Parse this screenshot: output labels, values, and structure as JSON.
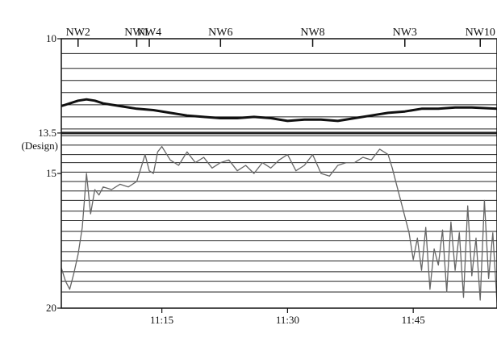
{
  "chart_data": {
    "type": "line",
    "title": "",
    "xlabel": "",
    "ylabel": "",
    "yaxis": {
      "inverted": true,
      "ylim": [
        10,
        20
      ],
      "ticks": [
        {
          "value": 10,
          "label": "10"
        },
        {
          "value": 13.5,
          "label": "13.5"
        },
        {
          "value": 15,
          "label": "15"
        },
        {
          "value": 20,
          "label": "20"
        }
      ],
      "design_label": "(Design)",
      "design_value": 13.5,
      "grid_lines": [
        10.55,
        11.1,
        11.55,
        12.0,
        12.45,
        12.9,
        13.35,
        13.5,
        13.6,
        13.95,
        14.3,
        14.6,
        14.95,
        15.3,
        15.65,
        16.0,
        16.4,
        16.75,
        17.15,
        17.5,
        17.9,
        18.25,
        18.65,
        19.0,
        19.4
      ]
    },
    "xaxis": {
      "xlim": [
        "11:03",
        "11:55"
      ],
      "ticks": [
        {
          "value": "11:15",
          "label": "11:15"
        },
        {
          "value": "11:30",
          "label": "11:30"
        },
        {
          "value": "11:45",
          "label": "11:45"
        }
      ]
    },
    "stations": [
      {
        "label": "NW2",
        "time": "11:05"
      },
      {
        "label": "NW1",
        "time": "11:12"
      },
      {
        "label": "NW4",
        "time": "11:13.5"
      },
      {
        "label": "NW6",
        "time": "11:22"
      },
      {
        "label": "NW8",
        "time": "11:33"
      },
      {
        "label": "NW3",
        "time": "11:44"
      },
      {
        "label": "NW10",
        "time": "11:53"
      }
    ],
    "series": [
      {
        "color": "#111111",
        "x": [
          "11:03",
          "11:04",
          "11:05",
          "11:06",
          "11:07",
          "11:08",
          "11:10",
          "11:12",
          "11:14",
          "11:16",
          "11:18",
          "11:20",
          "11:22",
          "11:24",
          "11:26",
          "11:28",
          "11:30",
          "11:32",
          "11:34",
          "11:36",
          "11:38",
          "11:40",
          "11:42",
          "11:44",
          "11:46",
          "11:48",
          "11:50",
          "11:52",
          "11:55"
        ],
        "values": [
          12.5,
          12.4,
          12.3,
          12.25,
          12.3,
          12.4,
          12.5,
          12.6,
          12.65,
          12.75,
          12.85,
          12.9,
          12.95,
          12.95,
          12.9,
          12.95,
          13.05,
          13.0,
          13.0,
          13.05,
          12.95,
          12.85,
          12.75,
          12.7,
          12.6,
          12.6,
          12.55,
          12.55,
          12.6
        ]
      },
      {
        "color": "#666666",
        "x": [
          "11:03",
          "11:03.5",
          "11:04",
          "11:04.5",
          "11:05",
          "11:05.5",
          "11:06",
          "11:06.5",
          "11:07",
          "11:07.5",
          "11:08",
          "11:09",
          "11:10",
          "11:11",
          "11:12",
          "11:12.5",
          "11:13",
          "11:13.5",
          "11:14",
          "11:14.5",
          "11:15",
          "11:16",
          "11:17",
          "11:18",
          "11:19",
          "11:20",
          "11:21",
          "11:22",
          "11:23",
          "11:24",
          "11:25",
          "11:26",
          "11:27",
          "11:28",
          "11:29",
          "11:30",
          "11:31",
          "11:32",
          "11:33",
          "11:34",
          "11:35",
          "11:36",
          "11:37",
          "11:38",
          "11:39",
          "11:40",
          "11:41",
          "11:42",
          "11:42.5",
          "11:43",
          "11:43.5",
          "11:44",
          "11:44.5",
          "11:45",
          "11:45.5",
          "11:46",
          "11:46.5",
          "11:47",
          "11:47.5",
          "11:48",
          "11:48.5",
          "11:49",
          "11:49.5",
          "11:50",
          "11:50.5",
          "11:51",
          "11:51.5",
          "11:52",
          "11:52.5",
          "11:53",
          "11:53.5",
          "11:54",
          "11:54.5",
          "11:55"
        ],
        "values": [
          18.5,
          19.0,
          19.3,
          18.7,
          18.0,
          17.0,
          15.0,
          16.5,
          15.6,
          15.8,
          15.5,
          15.6,
          15.4,
          15.5,
          15.3,
          14.8,
          14.3,
          14.9,
          15.0,
          14.2,
          14.0,
          14.5,
          14.7,
          14.2,
          14.6,
          14.4,
          14.8,
          14.6,
          14.5,
          14.9,
          14.7,
          15.0,
          14.6,
          14.8,
          14.5,
          14.3,
          14.9,
          14.7,
          14.3,
          15.0,
          15.1,
          14.7,
          14.6,
          14.6,
          14.4,
          14.5,
          14.1,
          14.3,
          14.8,
          15.4,
          16.0,
          16.6,
          17.2,
          18.2,
          17.4,
          18.6,
          17.0,
          19.3,
          17.8,
          18.4,
          17.1,
          19.4,
          16.8,
          18.6,
          17.2,
          19.6,
          16.2,
          18.8,
          17.4,
          19.7,
          16.0,
          18.9,
          17.2,
          19.8
        ]
      }
    ]
  }
}
